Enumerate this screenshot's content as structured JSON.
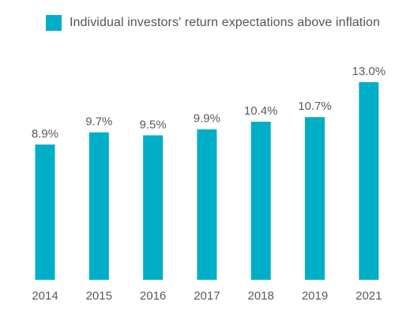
{
  "colors": {
    "bar": "#00aec8"
  },
  "chart_data": {
    "type": "bar",
    "categories": [
      "2014",
      "2015",
      "2016",
      "2017",
      "2018",
      "2019",
      "2021"
    ],
    "series": [
      {
        "name": "Individual investors' return expectations above inflation",
        "values": [
          8.9,
          9.7,
          9.5,
          9.9,
          10.4,
          10.7,
          13.0
        ]
      }
    ],
    "value_labels": [
      "8.9%",
      "9.7%",
      "9.5%",
      "9.9%",
      "10.4%",
      "10.7%",
      "13.0%"
    ],
    "legend": "top-left",
    "grid": false
  }
}
